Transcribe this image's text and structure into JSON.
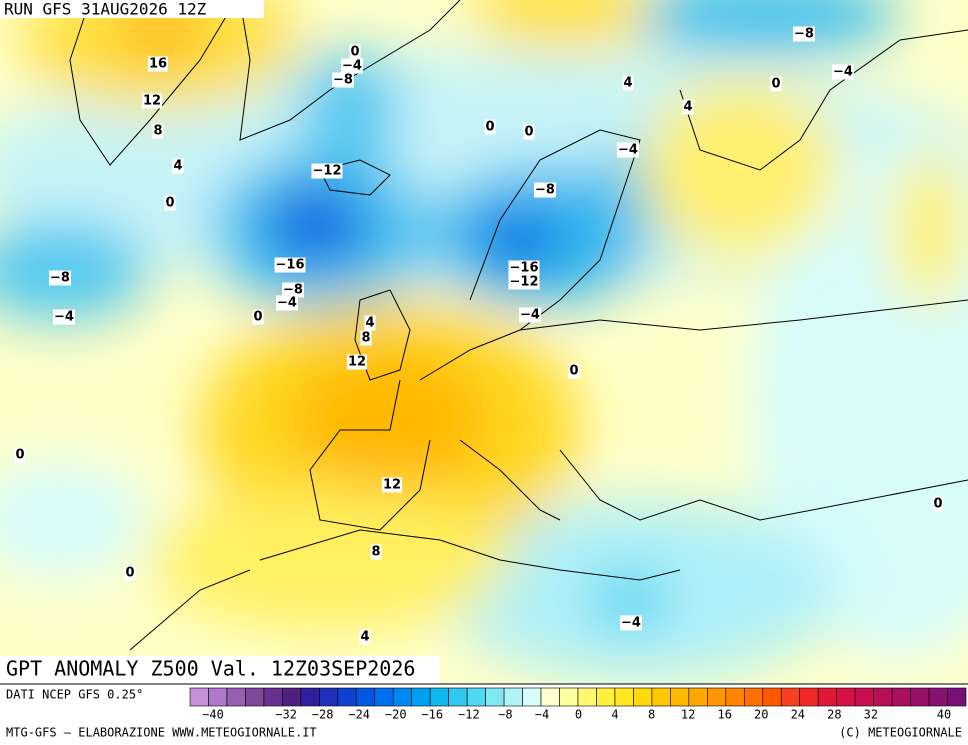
{
  "header": {
    "run": "RUN GFS 31AUG2026 12Z"
  },
  "map": {
    "title": "GPT ANOMALY Z500 Val. 12Z03SEP2026",
    "contour_labels": [
      "0",
      "−4",
      "−8",
      "16",
      "12",
      "8",
      "4",
      "0",
      "−12",
      "−16",
      "−8",
      "−4",
      "0",
      "−8",
      "−4",
      "0",
      "0",
      "4",
      "4",
      "0",
      "−8",
      "−4",
      "−4",
      "−8",
      "−16",
      "−12",
      "−4",
      "4",
      "8",
      "12",
      "0",
      "0",
      "12",
      "8",
      "0",
      "4",
      "−4",
      "0"
    ]
  },
  "footer": {
    "source": "DATI NCEP GFS 0.25°",
    "credit": "MTG-GFS – ELABORAZIONE WWW.METEOGIORNALE.IT",
    "copyright": "(C) METEOGIORNALE"
  },
  "colorbar": {
    "lim": [
      -40,
      40
    ],
    "ticks": [
      {
        "value": -40,
        "label": "−40"
      },
      {
        "value": -32,
        "label": "−32"
      },
      {
        "value": -28,
        "label": "−28"
      },
      {
        "value": -24,
        "label": "−24"
      },
      {
        "value": -20,
        "label": "−20"
      },
      {
        "value": -16,
        "label": "−16"
      },
      {
        "value": -12,
        "label": "−12"
      },
      {
        "value": -8,
        "label": "−8"
      },
      {
        "value": -4,
        "label": "−4"
      },
      0,
      4,
      8,
      12,
      16,
      20,
      24,
      28,
      32,
      40
    ],
    "colors": [
      "#c890d8",
      "#b078c8",
      "#9860b0",
      "#804898",
      "#683090",
      "#502080",
      "#3020a0",
      "#2030b8",
      "#1040d0",
      "#0058e0",
      "#0070f0",
      "#0088f0",
      "#00a0f0",
      "#10b8f0",
      "#30c8f0",
      "#50d8f0",
      "#80e8f4",
      "#b0f4f8",
      "#d8fcfc",
      "#ffffd0",
      "#ffffa0",
      "#fff870",
      "#fff040",
      "#ffe620",
      "#ffd810",
      "#ffc800",
      "#ffb800",
      "#ffa800",
      "#ff9800",
      "#ff8400",
      "#ff7000",
      "#ff5800",
      "#f84020",
      "#f02828",
      "#e01838",
      "#d81048",
      "#c81050",
      "#b81058",
      "#a81060",
      "#981068",
      "#881070",
      "#781078"
    ]
  }
}
